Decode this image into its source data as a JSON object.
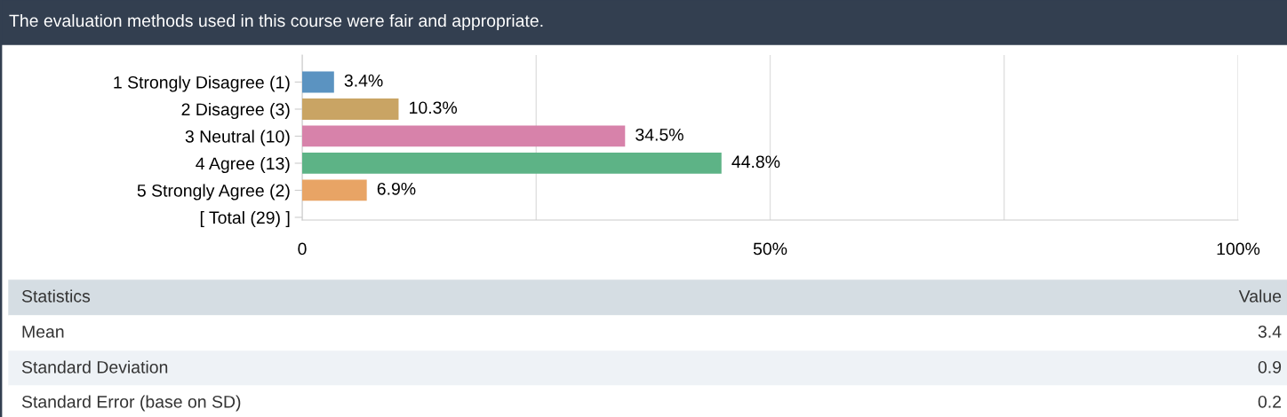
{
  "chart_data": {
    "type": "bar",
    "orientation": "horizontal",
    "title": "The evaluation methods used in this course were fair and appropriate.",
    "categories": [
      "1 Strongly Disagree (1)",
      "2 Disagree (3)",
      "3 Neutral (10)",
      "4 Agree (13)",
      "5 Strongly Agree (2)",
      "[ Total (29) ]"
    ],
    "values": [
      3.4,
      10.3,
      34.5,
      44.8,
      6.9,
      null
    ],
    "colors": [
      "#5b93c1",
      "#c9a464",
      "#d782aa",
      "#5db386",
      "#e8a465",
      "#999999"
    ],
    "value_labels": [
      "3.4%",
      "10.3%",
      "34.5%",
      "44.8%",
      "6.9%",
      null
    ],
    "xlim": [
      0,
      100
    ],
    "xticks": [
      0,
      {
        "value": 25,
        "label": null
      },
      {
        "value": 50,
        "label": "50%"
      },
      {
        "value": 75,
        "label": null
      },
      {
        "value": 100,
        "label": "100%"
      }
    ],
    "grid": "x",
    "annotations": [
      "Statistics",
      "Value",
      "Mean",
      "3.4",
      "Standard Deviation",
      "0.9",
      "Standard Error (base on SD)",
      "0.2"
    ]
  }
}
